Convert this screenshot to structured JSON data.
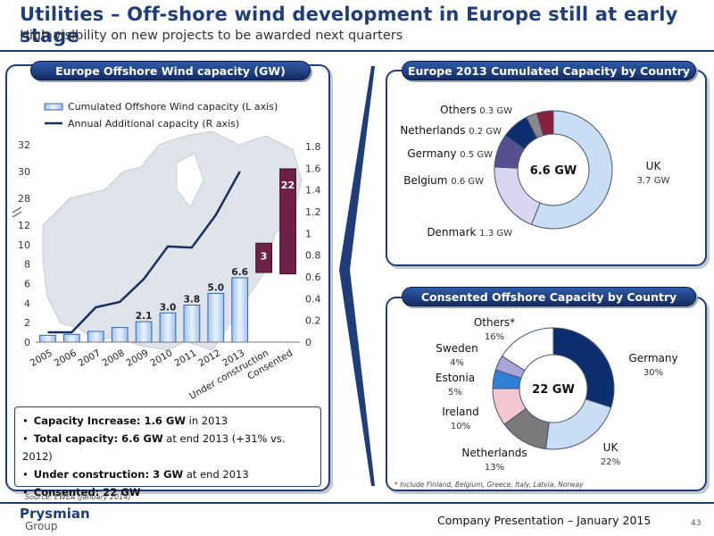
{
  "header": {
    "title": "Utilities – Off-shore wind development in Europe still at early stage",
    "subtitle": "High visibility on new projects to be awarded next quarters"
  },
  "left_panel": {
    "banner": "Europe Offshore Wind capacity (GW)",
    "bullets": [
      {
        "bold": "Capacity Increase: 1.6 GW",
        "rest": " in 2013"
      },
      {
        "bold": "Total capacity: 6.6 GW",
        "rest": " at end 2013 (+31% vs. 2012)"
      },
      {
        "bold": "Under construction: 3 GW",
        "rest": " at end 2013"
      },
      {
        "bold": "Consented: 22 GW",
        "rest": ""
      }
    ],
    "source": "Source: EWEA (January 2014)"
  },
  "right_top": {
    "banner": "Europe 2013 Cumulated Capacity by Country"
  },
  "right_bottom": {
    "banner": "Consented Offshore Capacity by Country",
    "footnote": "* Include Finland, Belgium, Greece, Italy, Latvia, Norway"
  },
  "footer": {
    "company_line1": "Prysmian",
    "company_line2": "Group",
    "presentation": "Company Presentation – January 2015",
    "page": "43"
  },
  "colors": {
    "navy": "#1f3d7a",
    "maroon": "#6e2047",
    "light_blue": "#c9def5"
  },
  "chart_data": [
    {
      "type": "bar",
      "title": "Europe Offshore Wind capacity (GW)",
      "categories": [
        "2005",
        "2006",
        "2007",
        "2008",
        "2009",
        "2010",
        "2011",
        "2012",
        "2013",
        "Under construction",
        "Consented"
      ],
      "series": [
        {
          "name": "Cumulated Offshore Wind capacity (L axis)",
          "type": "bar",
          "axis": "left",
          "values": [
            0.7,
            0.8,
            1.1,
            1.5,
            2.1,
            3.0,
            3.8,
            5.0,
            6.6,
            null,
            null
          ],
          "labels": [
            "",
            "",
            "",
            "",
            "2.1",
            "3.0",
            "3.8",
            "5.0",
            "6.6",
            "",
            ""
          ]
        },
        {
          "name": "Annual Additional capacity (R axis)",
          "type": "line",
          "axis": "right",
          "values": [
            0.09,
            0.09,
            0.32,
            0.37,
            0.58,
            0.88,
            0.87,
            1.17,
            1.57,
            null,
            null
          ]
        },
        {
          "name": "Under construction / Consented",
          "type": "bar",
          "axis": "left",
          "values": [
            null,
            null,
            null,
            null,
            null,
            null,
            null,
            null,
            null,
            3,
            22
          ],
          "labels": [
            "",
            "",
            "",
            "",
            "",
            "",
            "",
            "",
            "",
            "3",
            "22"
          ]
        }
      ],
      "y_left_ticks": [
        "0",
        "2",
        "4",
        "6",
        "8",
        "10",
        "12",
        "28",
        "30",
        "32"
      ],
      "y_left_ranges": [
        [
          0,
          12
        ],
        [
          28,
          32
        ]
      ],
      "y_right_ticks": [
        "0",
        "0.2",
        "0.4",
        "0.6",
        "0.8",
        "1",
        "1.2",
        "1.4",
        "1.6",
        "1.8"
      ],
      "y_right_range": [
        0,
        1.8
      ],
      "legend": "top-left"
    },
    {
      "type": "pie",
      "variant": "donut",
      "center_label": "6.6 GW",
      "slices": [
        {
          "label": "UK",
          "value_text": "3.7 GW",
          "value": 3.7,
          "color": "#c9def5"
        },
        {
          "label": "Denmark",
          "value_text": "1.3 GW",
          "value": 1.3,
          "color": "#d8d6f0"
        },
        {
          "label": "Belgium",
          "value_text": "0.6 GW",
          "value": 0.6,
          "color": "#55518f"
        },
        {
          "label": "Germany",
          "value_text": "0.5 GW",
          "value": 0.5,
          "color": "#0c2d6e"
        },
        {
          "label": "Netherlands",
          "value_text": "0.2 GW",
          "value": 0.2,
          "color": "#8a8a8a"
        },
        {
          "label": "Others",
          "value_text": "0.3 GW",
          "value": 0.3,
          "color": "#8b1f3f"
        }
      ]
    },
    {
      "type": "pie",
      "variant": "donut",
      "center_label": "22 GW",
      "slices": [
        {
          "label": "Germany",
          "value_text": "30%",
          "value": 30,
          "color": "#0c2d6e"
        },
        {
          "label": "UK",
          "value_text": "22%",
          "value": 22,
          "color": "#c9def5"
        },
        {
          "label": "Netherlands",
          "value_text": "13%",
          "value": 13,
          "color": "#7a7a7a"
        },
        {
          "label": "Ireland",
          "value_text": "10%",
          "value": 10,
          "color": "#f3c6d2"
        },
        {
          "label": "Estonia",
          "value_text": "5%",
          "value": 5,
          "color": "#2f7fd6"
        },
        {
          "label": "Sweden",
          "value_text": "4%",
          "value": 4,
          "color": "#a9a4d8"
        },
        {
          "label": "Others*",
          "value_text": "16%",
          "value": 16,
          "color": "#ffffff"
        }
      ]
    }
  ]
}
